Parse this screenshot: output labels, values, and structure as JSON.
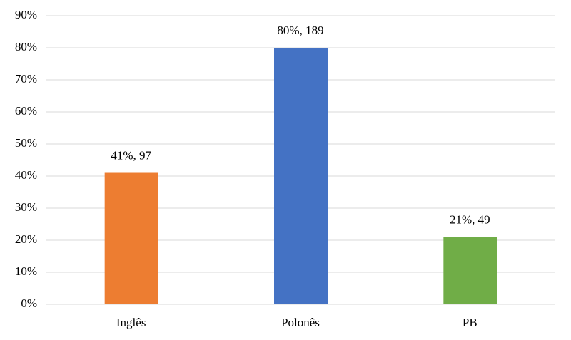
{
  "chart_data": {
    "type": "bar",
    "categories": [
      "Inglês",
      "Polonês",
      "PB"
    ],
    "values": [
      41,
      80,
      21
    ],
    "value_labels": [
      "41%, 97",
      "80%, 189",
      "21%, 49"
    ],
    "colors": [
      "#ed7d31",
      "#4472c4",
      "#70ad47"
    ],
    "ylim": [
      0,
      90
    ],
    "yticks": [
      {
        "value": 0,
        "label": "0%"
      },
      {
        "value": 10,
        "label": "10%"
      },
      {
        "value": 20,
        "label": "20%"
      },
      {
        "value": 30,
        "label": "30%"
      },
      {
        "value": 40,
        "label": "40%"
      },
      {
        "value": 50,
        "label": "50%"
      },
      {
        "value": 60,
        "label": "60%"
      },
      {
        "value": 70,
        "label": "70%"
      },
      {
        "value": 80,
        "label": "80%"
      },
      {
        "value": 90,
        "label": "90%"
      }
    ],
    "grid": true
  }
}
